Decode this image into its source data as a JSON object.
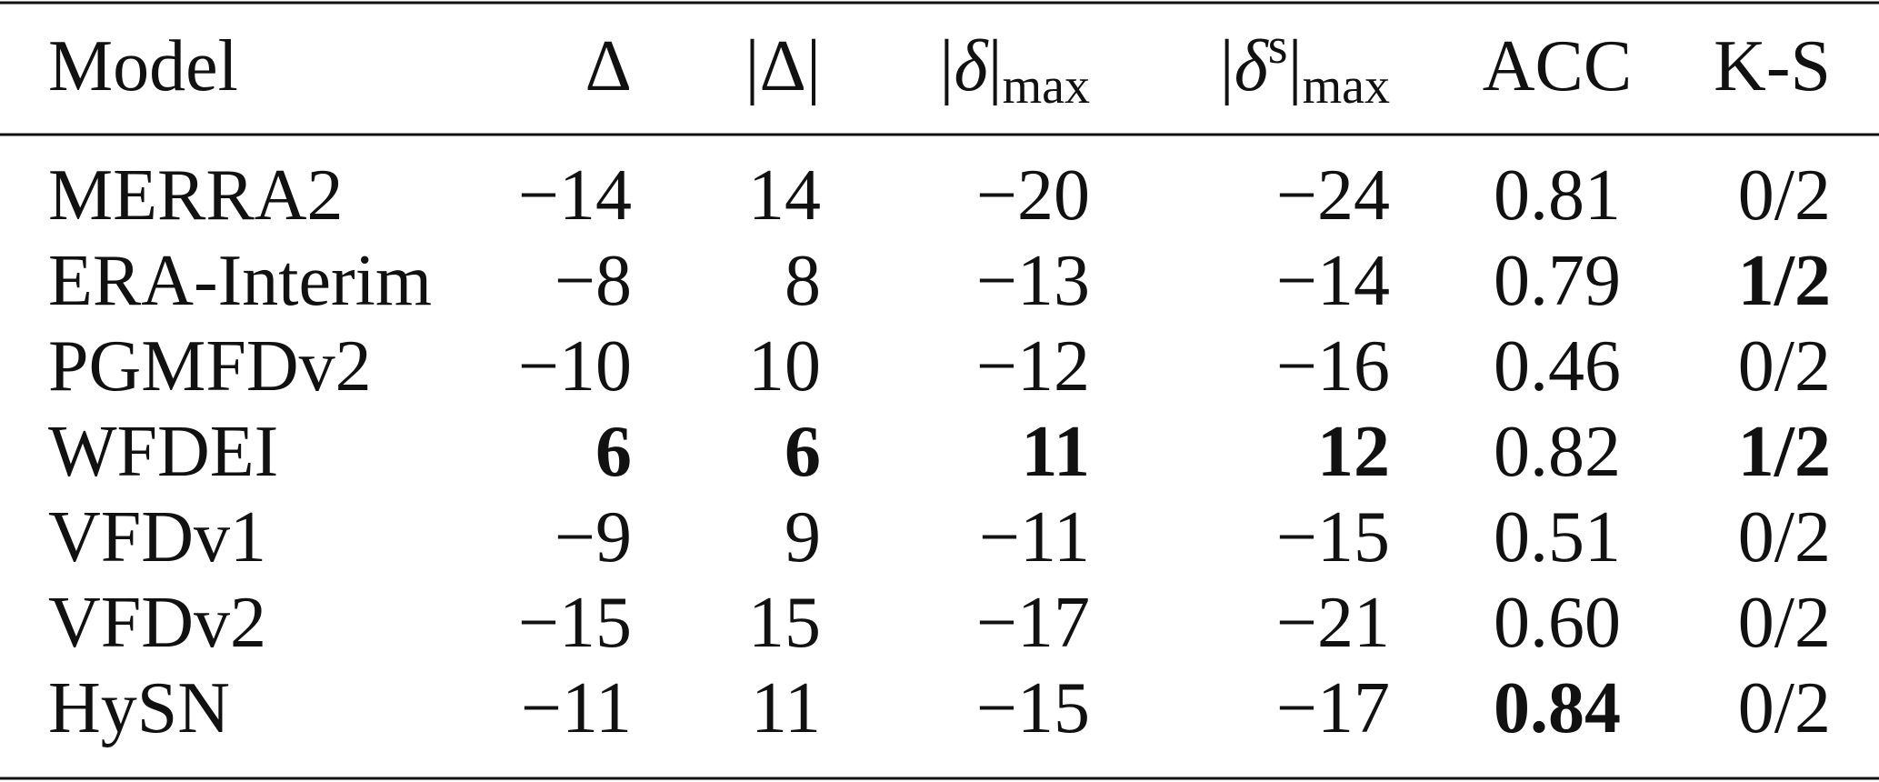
{
  "table": {
    "align": [
      "left",
      "right",
      "right",
      "right",
      "right",
      "center",
      "right"
    ],
    "header": [
      {
        "parts": [
          {
            "text": "Model"
          }
        ]
      },
      {
        "parts": [
          {
            "text": "Δ"
          }
        ]
      },
      {
        "parts": [
          {
            "text": "|Δ|"
          }
        ]
      },
      {
        "parts": [
          {
            "text": "|"
          },
          {
            "italic": "δ"
          },
          {
            "text": "|"
          },
          {
            "sub": "max"
          }
        ]
      },
      {
        "parts": [
          {
            "text": "|"
          },
          {
            "italic": "δ"
          },
          {
            "sup": "s"
          },
          {
            "text": "|"
          },
          {
            "sub": "max"
          }
        ]
      },
      {
        "parts": [
          {
            "text": "ACC"
          }
        ]
      },
      {
        "parts": [
          {
            "text": "K-S"
          }
        ]
      }
    ],
    "rows": [
      {
        "cells": [
          "MERRA2",
          "−14",
          "14",
          "−20",
          "−24",
          "0.81",
          "0/2"
        ],
        "bold": []
      },
      {
        "cells": [
          "ERA-Interim",
          "−8",
          "8",
          "−13",
          "−14",
          "0.79",
          "1/2"
        ],
        "bold": [
          6
        ]
      },
      {
        "cells": [
          "PGMFDv2",
          "−10",
          "10",
          "−12",
          "−16",
          "0.46",
          "0/2"
        ],
        "bold": []
      },
      {
        "cells": [
          "WFDEI",
          "6",
          "6",
          "11",
          "12",
          "0.82",
          "1/2"
        ],
        "bold": [
          1,
          2,
          3,
          4,
          6
        ]
      },
      {
        "cells": [
          "VFDv1",
          "−9",
          "9",
          "−11",
          "−15",
          "0.51",
          "0/2"
        ],
        "bold": []
      },
      {
        "cells": [
          "VFDv2",
          "−15",
          "15",
          "−17",
          "−21",
          "0.60",
          "0/2"
        ],
        "bold": []
      },
      {
        "cells": [
          "HySN",
          "−11",
          "11",
          "−15",
          "−17",
          "0.84",
          "0/2"
        ],
        "bold": [
          5
        ]
      }
    ]
  }
}
